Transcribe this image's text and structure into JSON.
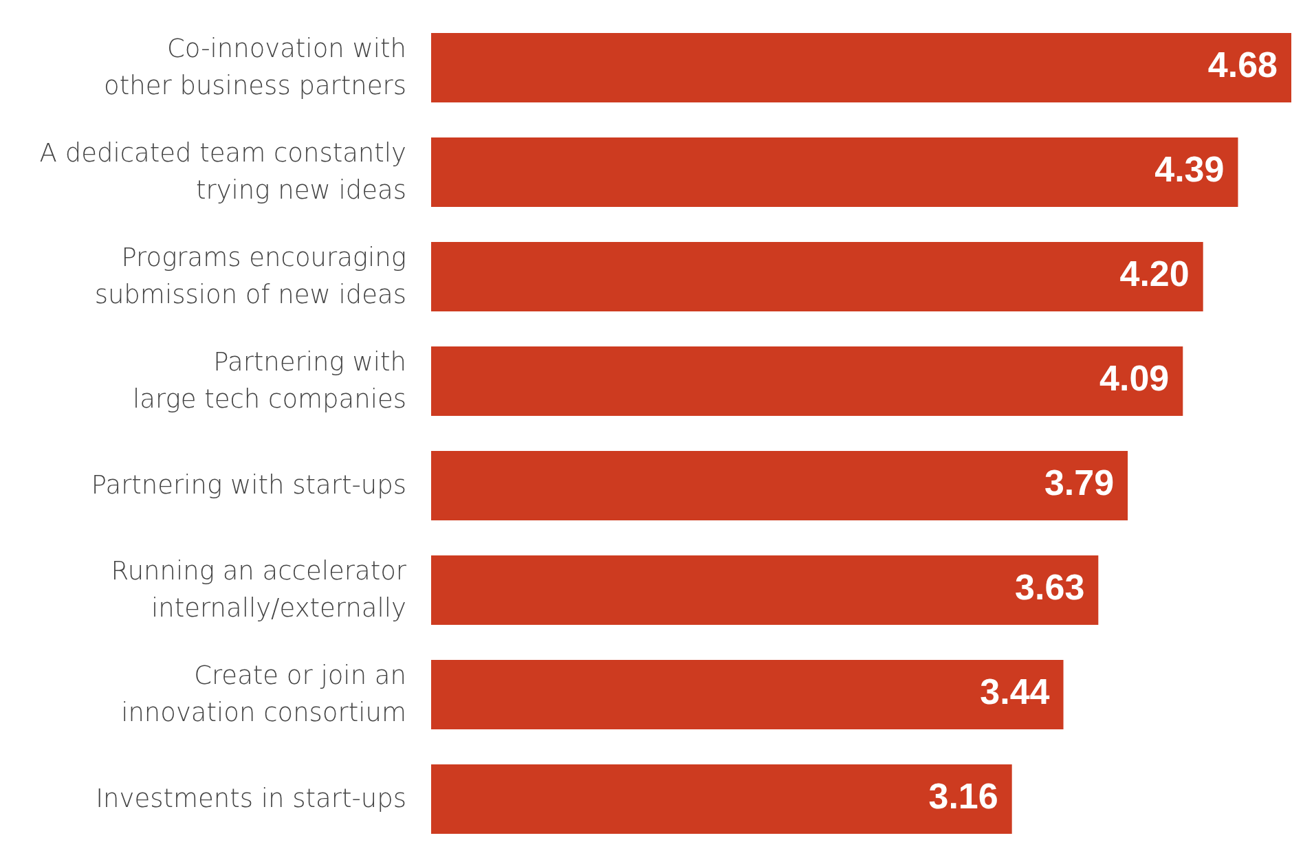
{
  "chart_data": {
    "type": "bar",
    "orientation": "horizontal",
    "categories": [
      "Co-innovation with other business partners",
      "A dedicated team constantly trying new ideas",
      "Programs encouraging submission of new ideas",
      "Partnering with large tech companies",
      "Partnering with start-ups",
      "Running an accelerator internally/externally",
      "Create or join an innovation consortium",
      "Investments in start-ups"
    ],
    "values": [
      4.68,
      4.39,
      4.2,
      4.09,
      3.79,
      3.63,
      3.44,
      3.16
    ],
    "value_labels": [
      "4.68",
      "4.39",
      "4.20",
      "4.09",
      "3.79",
      "3.63",
      "3.44",
      "3.16"
    ],
    "color": "#cd3b20"
  }
}
